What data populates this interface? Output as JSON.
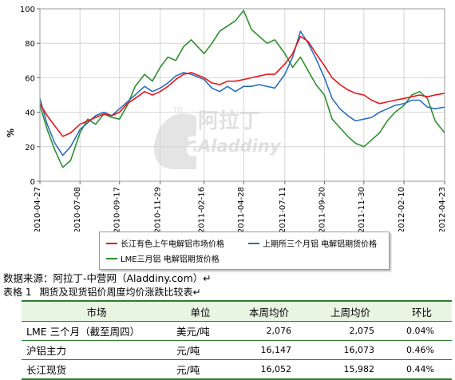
{
  "chart_data": {
    "type": "line",
    "title": "",
    "xlabel": "",
    "ylabel": "%",
    "ylim": [
      0,
      100
    ],
    "yticks": [
      0,
      20,
      40,
      60,
      80,
      100
    ],
    "xlim": [
      "2010-04-27",
      "2012-04-23"
    ],
    "xticks": [
      "2010-04-27",
      "2010-07-08",
      "2010-09-17",
      "2010-11-29",
      "2011-02-16",
      "2011-04-28",
      "2011-07-11",
      "2011-09-20",
      "2011-11-30",
      "2012-02-10",
      "2012-04-23"
    ],
    "grid": true,
    "legend_position": "bottom",
    "series": [
      {
        "name": "长江有色上午电解铝市场价格",
        "color": "#e8141b",
        "x": [
          "2010-04-27",
          "2010-05-10",
          "2010-05-24",
          "2010-06-07",
          "2010-06-21",
          "2010-07-08",
          "2010-07-22",
          "2010-08-05",
          "2010-08-20",
          "2010-09-03",
          "2010-09-17",
          "2010-10-01",
          "2010-10-15",
          "2010-11-01",
          "2010-11-15",
          "2010-11-29",
          "2010-12-13",
          "2010-12-27",
          "2011-01-10",
          "2011-01-24",
          "2011-02-16",
          "2011-03-02",
          "2011-03-16",
          "2011-03-30",
          "2011-04-13",
          "2011-04-28",
          "2011-05-12",
          "2011-05-26",
          "2011-06-09",
          "2011-06-23",
          "2011-07-11",
          "2011-07-25",
          "2011-08-08",
          "2011-08-22",
          "2011-09-05",
          "2011-09-20",
          "2011-10-04",
          "2011-10-18",
          "2011-11-01",
          "2011-11-15",
          "2011-11-30",
          "2011-12-14",
          "2011-12-28",
          "2012-01-11",
          "2012-01-25",
          "2012-02-10",
          "2012-02-24",
          "2012-03-09",
          "2012-03-23",
          "2012-04-06",
          "2012-04-23"
        ],
        "values": [
          45,
          38,
          32,
          26,
          28,
          33,
          35,
          37,
          39,
          38,
          40,
          45,
          48,
          52,
          50,
          52,
          55,
          59,
          62,
          63,
          60,
          57,
          56,
          58,
          58,
          59,
          60,
          61,
          62,
          62,
          68,
          74,
          84,
          81,
          74,
          67,
          60,
          56,
          53,
          51,
          50,
          47,
          45,
          46,
          47,
          48,
          49,
          50,
          49,
          50,
          51
        ]
      },
      {
        "name": "上期所三个月铝 电解铝期货价格",
        "color": "#2a6fba",
        "x": [
          "2010-04-27",
          "2010-05-10",
          "2010-05-24",
          "2010-06-07",
          "2010-06-21",
          "2010-07-08",
          "2010-07-22",
          "2010-08-05",
          "2010-08-20",
          "2010-09-03",
          "2010-09-17",
          "2010-10-01",
          "2010-10-15",
          "2010-11-01",
          "2010-11-15",
          "2010-11-29",
          "2010-12-13",
          "2010-12-27",
          "2011-01-10",
          "2011-01-24",
          "2011-02-16",
          "2011-03-02",
          "2011-03-16",
          "2011-03-30",
          "2011-04-13",
          "2011-04-28",
          "2011-05-12",
          "2011-05-26",
          "2011-06-09",
          "2011-06-23",
          "2011-07-11",
          "2011-07-25",
          "2011-08-08",
          "2011-08-22",
          "2011-09-05",
          "2011-09-20",
          "2011-10-04",
          "2011-10-18",
          "2011-11-01",
          "2011-11-15",
          "2011-11-30",
          "2011-12-14",
          "2011-12-28",
          "2012-01-11",
          "2012-01-25",
          "2012-02-10",
          "2012-02-24",
          "2012-03-09",
          "2012-03-23",
          "2012-04-06",
          "2012-04-23"
        ],
        "values": [
          48,
          33,
          22,
          15,
          20,
          30,
          34,
          38,
          40,
          38,
          42,
          46,
          50,
          55,
          52,
          54,
          57,
          61,
          63,
          62,
          59,
          54,
          52,
          55,
          52,
          55,
          55,
          56,
          55,
          54,
          62,
          72,
          87,
          80,
          71,
          60,
          48,
          42,
          38,
          35,
          36,
          37,
          40,
          42,
          44,
          45,
          47,
          47,
          43,
          42,
          43
        ]
      },
      {
        "name": "LME三月铝 电解铝期货价格",
        "color": "#2f8f2f",
        "x": [
          "2010-04-27",
          "2010-05-10",
          "2010-05-24",
          "2010-06-07",
          "2010-06-21",
          "2010-07-08",
          "2010-07-22",
          "2010-08-05",
          "2010-08-20",
          "2010-09-03",
          "2010-09-17",
          "2010-10-01",
          "2010-10-15",
          "2010-11-01",
          "2010-11-15",
          "2010-11-29",
          "2010-12-13",
          "2010-12-27",
          "2011-01-10",
          "2011-01-24",
          "2011-02-16",
          "2011-03-02",
          "2011-03-16",
          "2011-03-30",
          "2011-04-13",
          "2011-04-28",
          "2011-05-12",
          "2011-05-26",
          "2011-06-09",
          "2011-06-23",
          "2011-07-11",
          "2011-07-25",
          "2011-08-08",
          "2011-08-22",
          "2011-09-05",
          "2011-09-20",
          "2011-10-04",
          "2011-10-18",
          "2011-11-01",
          "2011-11-15",
          "2011-11-30",
          "2011-12-14",
          "2011-12-28",
          "2012-01-11",
          "2012-01-25",
          "2012-02-10",
          "2012-02-24",
          "2012-03-09",
          "2012-03-23",
          "2012-04-06",
          "2012-04-23"
        ],
        "values": [
          44,
          30,
          18,
          8,
          12,
          28,
          36,
          33,
          39,
          37,
          36,
          44,
          55,
          62,
          58,
          66,
          72,
          70,
          78,
          82,
          74,
          80,
          87,
          90,
          93,
          99,
          88,
          84,
          80,
          82,
          74,
          66,
          72,
          64,
          56,
          50,
          36,
          31,
          26,
          22,
          20,
          24,
          28,
          35,
          40,
          44,
          50,
          52,
          48,
          35,
          28
        ]
      }
    ]
  },
  "source_note": "数据来源：阿拉丁-中营网（Aladdiny.com）↵",
  "table_caption": {
    "label": "表格 1",
    "text": "期货及现货铝价周度均价涨跌比较表↵"
  },
  "table": {
    "headers": [
      "市场",
      "单位",
      "本周均价",
      "上周均价",
      "环比"
    ],
    "rows": [
      {
        "market": "LME 三个月（截至周四）",
        "unit": "美元/吨",
        "this_week": "2,076",
        "last_week": "2,075",
        "change": "0.04%"
      },
      {
        "market": "沪铝主力",
        "unit": "元/吨",
        "this_week": "16,147",
        "last_week": "16,073",
        "change": "0.46%"
      },
      {
        "market": "长江现货",
        "unit": "元/吨",
        "this_week": "16,052",
        "last_week": "15,982",
        "change": "0.44%"
      }
    ]
  },
  "watermark": {
    "brand_cn": "阿拉丁",
    "brand_en": "Aladdiny",
    "tm": "TM"
  }
}
